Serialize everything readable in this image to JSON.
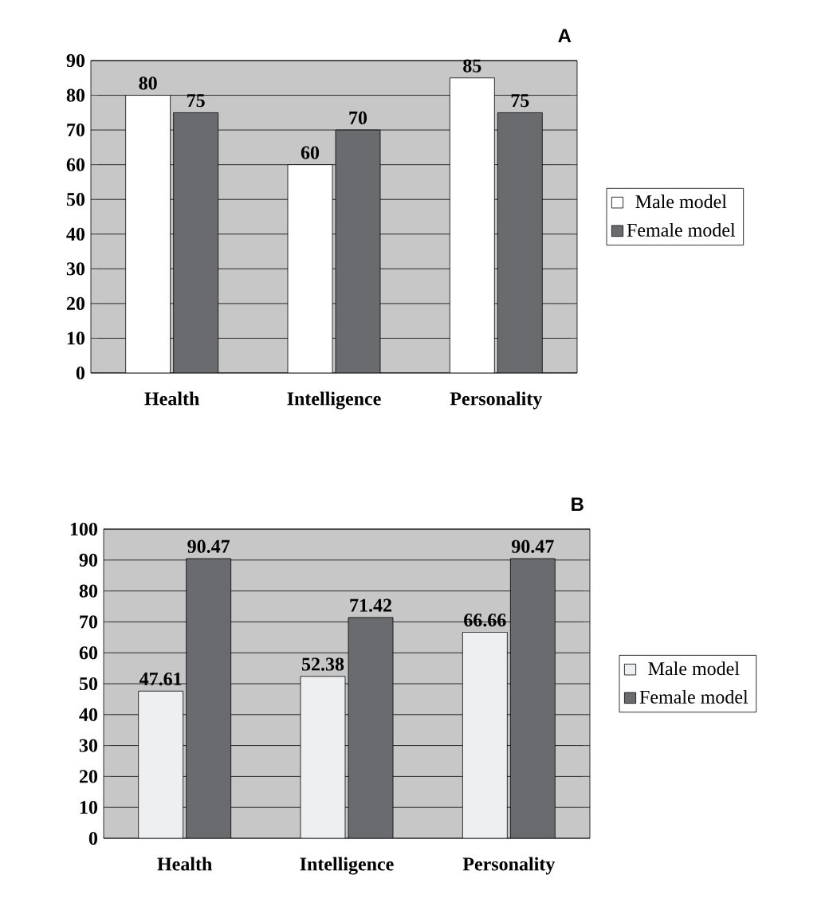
{
  "chart_data": [
    {
      "type": "bar",
      "title": "A",
      "categories": [
        "Health",
        "Intelligence",
        "Personality"
      ],
      "series": [
        {
          "name": "Male model",
          "color": "#ffffff",
          "values": [
            80,
            60,
            85
          ]
        },
        {
          "name": "Female model",
          "color": "#6a6b6f",
          "values": [
            75,
            70,
            75
          ]
        }
      ],
      "ylim": [
        0,
        90
      ],
      "yticks": [
        0,
        10,
        20,
        30,
        40,
        50,
        60,
        70,
        80,
        90
      ],
      "grid": "y",
      "legend": "right",
      "data_labels": true
    },
    {
      "type": "bar",
      "title": "B",
      "categories": [
        "Health",
        "Intelligence",
        "Personality"
      ],
      "series": [
        {
          "name": "Male model",
          "color": "#eeeff1",
          "values": [
            47.61,
            52.38,
            66.66
          ]
        },
        {
          "name": "Female model",
          "color": "#6a6b6f",
          "values": [
            90.47,
            71.42,
            90.47
          ]
        }
      ],
      "ylim": [
        0,
        100
      ],
      "yticks": [
        0,
        10,
        20,
        30,
        40,
        50,
        60,
        70,
        80,
        90,
        100
      ],
      "grid": "y",
      "legend": "right",
      "data_labels": true
    }
  ]
}
